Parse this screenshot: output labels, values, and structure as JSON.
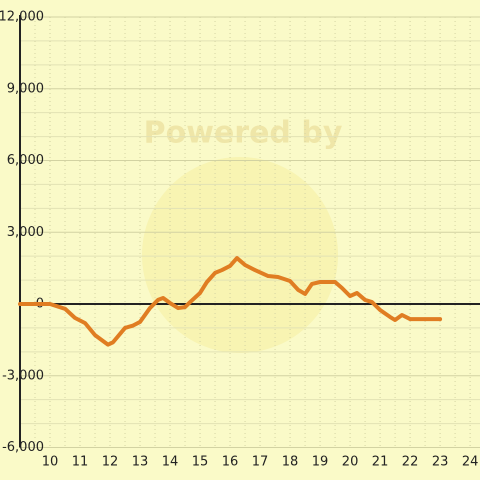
{
  "chart_data": {
    "type": "line",
    "watermark": "Powered by",
    "x": [
      9,
      10,
      10.5,
      10.83,
      11.17,
      11.5,
      11.93,
      12.1,
      12.5,
      12.77,
      13,
      13.33,
      13.6,
      13.77,
      14,
      14.27,
      14.5,
      14.67,
      15,
      15.23,
      15.5,
      15.73,
      16,
      16.23,
      16.5,
      16.83,
      17.27,
      17.6,
      18,
      18.27,
      18.5,
      18.73,
      19,
      19.5,
      19.73,
      20,
      20.23,
      20.5,
      20.73,
      21,
      21.33,
      21.5,
      21.73,
      22,
      23
    ],
    "series": [
      {
        "color": "#e07d22",
        "values": [
          0,
          0,
          -200,
          -580,
          -800,
          -1300,
          -1700,
          -1600,
          -1000,
          -900,
          -750,
          -170,
          170,
          250,
          40,
          -170,
          -130,
          80,
          460,
          920,
          1300,
          1420,
          1590,
          1920,
          1630,
          1420,
          1170,
          1130,
          960,
          590,
          420,
          840,
          920,
          920,
          670,
          330,
          460,
          170,
          80,
          -250,
          -540,
          -670,
          -460,
          -630,
          -630
        ]
      }
    ],
    "xlim": [
      9,
      24.33
    ],
    "xticks": [
      10,
      11,
      12,
      13,
      14,
      15,
      16,
      17,
      18,
      19,
      20,
      21,
      22,
      23,
      24
    ],
    "x_minor_ticks": [
      9.5,
      10.5,
      11.5,
      12.5,
      13.5,
      14.5,
      15.5,
      16.5,
      17.5,
      18.5,
      19.5,
      20.5,
      21.5,
      22.5,
      23.5
    ],
    "ylim": [
      -6000,
      12000
    ],
    "yticks": [
      {
        "value": -6000,
        "label": "-6,000"
      },
      {
        "value": -3000,
        "label": "-3,000"
      },
      0,
      {
        "value": 3000,
        "label": "3,000"
      },
      {
        "value": 6000,
        "label": "6,000"
      },
      {
        "value": 9000,
        "label": "9,000"
      },
      {
        "value": 12000,
        "label": "12,000"
      }
    ],
    "y_minor_ticks": [
      -5000,
      -4000,
      -2000,
      -1000,
      1000,
      2000,
      4000,
      5000,
      7000,
      8000,
      10000,
      11000
    ],
    "grid": true
  }
}
